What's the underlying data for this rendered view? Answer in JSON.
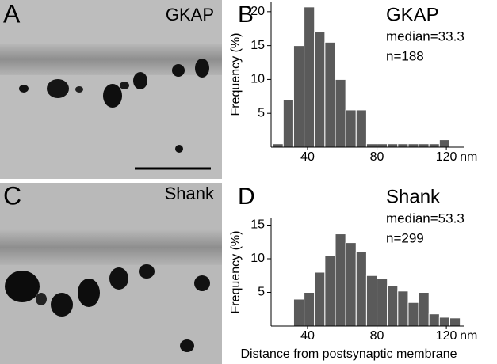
{
  "panels": {
    "A": {
      "label": "A",
      "text": "GKAP"
    },
    "C": {
      "label": "C",
      "text": "Shank"
    }
  },
  "chart_data": [
    {
      "type": "histogram",
      "panel_label": "B",
      "title": "GKAP",
      "annotations": [
        "median=33.3",
        "n=188"
      ],
      "y_label": "Frequency (%)",
      "x_unit": "nm",
      "bins": [
        20,
        26,
        32,
        38,
        44,
        50,
        56,
        62,
        68,
        74,
        80,
        86,
        92,
        98,
        104,
        110,
        116,
        122
      ],
      "values": [
        0.5,
        7,
        15,
        20.7,
        17,
        15.5,
        10,
        5.5,
        5.5,
        0.5,
        0.5,
        0.5,
        0.5,
        0.5,
        0.5,
        0.5,
        1.1
      ],
      "color": "#5a5a5a",
      "xlim": [
        19,
        130
      ],
      "ylim": [
        0,
        21.5
      ],
      "xticks": [
        40,
        80,
        120
      ],
      "yticks": [
        5,
        10,
        15,
        20
      ]
    },
    {
      "type": "histogram",
      "panel_label": "D",
      "title": "Shank",
      "annotations": [
        "median=53.3",
        "n=299"
      ],
      "y_label": "Frequency (%)",
      "x_label": "Distance from postsynaptic membrane",
      "x_unit": "nm",
      "bins": [
        32,
        38,
        44,
        50,
        56,
        62,
        68,
        74,
        80,
        86,
        92,
        98,
        104,
        110,
        116,
        122,
        128
      ],
      "values": [
        4,
        5,
        8,
        10.5,
        13.7,
        12.4,
        11,
        7.5,
        7,
        6,
        5.2,
        3.5,
        5,
        1.8,
        1.3,
        1.2
      ],
      "color": "#5a5a5a",
      "xlim": [
        19,
        130
      ],
      "ylim": [
        0,
        16
      ],
      "xticks": [
        40,
        80,
        120
      ],
      "yticks": [
        5,
        10,
        15
      ]
    }
  ]
}
